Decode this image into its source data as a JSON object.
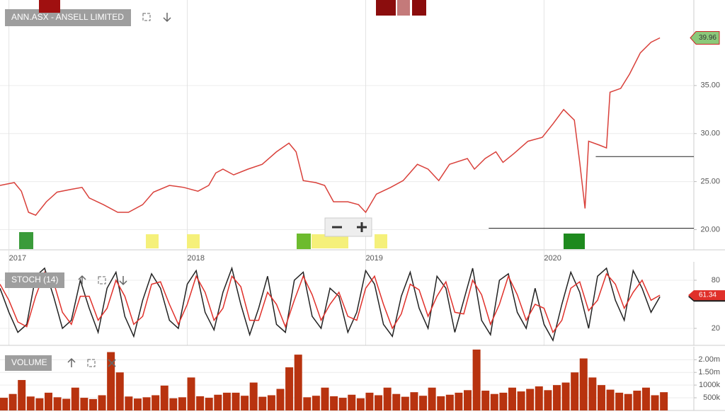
{
  "chart_data": [
    {
      "type": "line",
      "title": "ANN.ASX - ANSELL LIMITED",
      "x": [
        2016.95,
        2017.03,
        2017.07,
        2017.11,
        2017.15,
        2017.21,
        2017.27,
        2017.35,
        2017.41,
        2017.45,
        2017.53,
        2017.61,
        2017.67,
        2017.75,
        2017.81,
        2017.9,
        2017.98,
        2018.06,
        2018.12,
        2018.16,
        2018.2,
        2018.26,
        2018.34,
        2018.42,
        2018.5,
        2018.57,
        2018.61,
        2018.65,
        2018.72,
        2018.77,
        2018.82,
        2018.9,
        2018.96,
        2019.0,
        2019.06,
        2019.14,
        2019.21,
        2019.29,
        2019.35,
        2019.41,
        2019.47,
        2019.57,
        2019.61,
        2019.67,
        2019.73,
        2019.77,
        2019.83,
        2019.91,
        2019.99,
        2020.05,
        2020.11,
        2020.17,
        2020.2,
        2020.23,
        2020.25,
        2020.31,
        2020.35,
        2020.37,
        2020.43,
        2020.48,
        2020.54,
        2020.6,
        2020.65
      ],
      "series": [
        {
          "color": "#d9403a",
          "values": [
            24.6,
            24.9,
            24.0,
            21.8,
            21.5,
            22.9,
            23.9,
            24.2,
            24.4,
            23.3,
            22.6,
            21.8,
            21.8,
            22.6,
            23.9,
            24.6,
            24.4,
            24.0,
            24.6,
            25.9,
            26.3,
            25.7,
            26.3,
            26.8,
            28.1,
            29.0,
            28.1,
            25.1,
            24.9,
            24.6,
            22.9,
            22.9,
            22.6,
            21.8,
            23.7,
            24.4,
            25.1,
            26.8,
            26.3,
            25.1,
            26.8,
            27.4,
            26.3,
            27.4,
            28.1,
            27.0,
            27.9,
            29.2,
            29.6,
            31.0,
            32.5,
            31.4,
            27.0,
            22.2,
            29.2,
            28.8,
            28.5,
            34.3,
            34.7,
            36.2,
            38.4,
            39.5,
            39.96
          ]
        }
      ],
      "last_value": 39.96,
      "levels": [
        {
          "value": 27.6,
          "from": 2020.29
        },
        {
          "value": 20.15,
          "from": 2019.69
        }
      ],
      "xlim": [
        2016.95,
        2020.84
      ],
      "xticks": [
        2017,
        2018,
        2019,
        2020
      ],
      "ylim": [
        17.9,
        43.9
      ],
      "yticks": [
        {
          "value": 20,
          "label": "20.00"
        },
        {
          "value": 25,
          "label": "25.00"
        },
        {
          "value": 30,
          "label": "30.00"
        },
        {
          "value": 35,
          "label": "35.00"
        }
      ],
      "grid": true
    },
    {
      "type": "line",
      "title": "STOCH (14)",
      "x": [
        2016.95,
        2017.0,
        2017.05,
        2017.1,
        2017.15,
        2017.2,
        2017.25,
        2017.3,
        2017.35,
        2017.4,
        2017.45,
        2017.5,
        2017.55,
        2017.6,
        2017.65,
        2017.7,
        2017.75,
        2017.8,
        2017.85,
        2017.9,
        2017.95,
        2018.0,
        2018.05,
        2018.1,
        2018.15,
        2018.2,
        2018.25,
        2018.3,
        2018.35,
        2018.4,
        2018.45,
        2018.5,
        2018.55,
        2018.6,
        2018.65,
        2018.7,
        2018.75,
        2018.8,
        2018.85,
        2018.9,
        2018.95,
        2019.0,
        2019.05,
        2019.1,
        2019.15,
        2019.2,
        2019.25,
        2019.3,
        2019.35,
        2019.4,
        2019.45,
        2019.5,
        2019.55,
        2019.6,
        2019.65,
        2019.7,
        2019.75,
        2019.8,
        2019.85,
        2019.9,
        2019.95,
        2020.0,
        2020.05,
        2020.1,
        2020.15,
        2020.2,
        2020.25,
        2020.3,
        2020.35,
        2020.4,
        2020.45,
        2020.5,
        2020.55,
        2020.6,
        2020.65
      ],
      "series": [
        {
          "color": "#222222",
          "values": [
            70,
            40,
            15,
            25,
            85,
            95,
            60,
            20,
            30,
            80,
            45,
            15,
            70,
            90,
            35,
            10,
            55,
            88,
            70,
            30,
            20,
            75,
            92,
            40,
            18,
            65,
            95,
            50,
            12,
            45,
            85,
            25,
            15,
            80,
            90,
            35,
            20,
            70,
            60,
            15,
            40,
            92,
            75,
            25,
            10,
            60,
            90,
            45,
            20,
            85,
            70,
            15,
            55,
            95,
            30,
            12,
            80,
            88,
            40,
            20,
            70,
            25,
            5,
            50,
            90,
            65,
            20,
            85,
            95,
            55,
            30,
            92,
            70,
            40,
            59.42
          ]
        },
        {
          "color": "#e0302a",
          "values": [
            75,
            55,
            28,
            22,
            60,
            90,
            78,
            40,
            25,
            60,
            60,
            30,
            45,
            80,
            60,
            25,
            35,
            75,
            78,
            50,
            25,
            50,
            85,
            65,
            30,
            45,
            85,
            72,
            30,
            30,
            65,
            50,
            22,
            55,
            85,
            62,
            30,
            50,
            65,
            35,
            30,
            70,
            85,
            50,
            20,
            38,
            75,
            68,
            35,
            60,
            78,
            40,
            38,
            80,
            62,
            25,
            50,
            85,
            62,
            30,
            50,
            45,
            15,
            30,
            70,
            78,
            42,
            55,
            88,
            75,
            45,
            65,
            80,
            55,
            61.34
          ]
        }
      ],
      "xlim": [
        2016.95,
        2020.84
      ],
      "ylim": [
        -1.2,
        102.9
      ],
      "yticks": [
        20,
        80
      ],
      "grid": true
    },
    {
      "type": "bar",
      "title": "VOLUME",
      "x": [
        2016.95,
        2017.0,
        2017.05,
        2017.1,
        2017.15,
        2017.2,
        2017.25,
        2017.3,
        2017.35,
        2017.4,
        2017.45,
        2017.5,
        2017.55,
        2017.6,
        2017.65,
        2017.7,
        2017.75,
        2017.8,
        2017.85,
        2017.9,
        2017.95,
        2018.0,
        2018.05,
        2018.1,
        2018.15,
        2018.2,
        2018.25,
        2018.3,
        2018.35,
        2018.4,
        2018.45,
        2018.5,
        2018.55,
        2018.6,
        2018.65,
        2018.7,
        2018.75,
        2018.8,
        2018.85,
        2018.9,
        2018.95,
        2019.0,
        2019.05,
        2019.1,
        2019.15,
        2019.2,
        2019.25,
        2019.3,
        2019.35,
        2019.4,
        2019.45,
        2019.5,
        2019.55,
        2019.6,
        2019.65,
        2019.7,
        2019.75,
        2019.8,
        2019.85,
        2019.9,
        2019.95,
        2020.0,
        2020.05,
        2020.1,
        2020.15,
        2020.2,
        2020.25,
        2020.3,
        2020.35,
        2020.4,
        2020.45,
        2020.5,
        2020.55,
        2020.6,
        2020.65
      ],
      "values": [
        500000,
        650000,
        1200000,
        550000,
        480000,
        700000,
        520000,
        460000,
        900000,
        500000,
        450000,
        600000,
        2300000,
        1500000,
        550000,
        470000,
        520000,
        600000,
        980000,
        480000,
        520000,
        1300000,
        560000,
        500000,
        620000,
        700000,
        700000,
        580000,
        1100000,
        540000,
        600000,
        850000,
        1700000,
        2200000,
        520000,
        580000,
        900000,
        560000,
        500000,
        620000,
        480000,
        700000,
        600000,
        900000,
        650000,
        540000,
        720000,
        580000,
        900000,
        560000,
        620000,
        700000,
        800000,
        2400000,
        780000,
        650000,
        700000,
        900000,
        750000,
        850000,
        950000,
        800000,
        1000000,
        1100000,
        1500000,
        2050000,
        1300000,
        1000000,
        820000,
        700000,
        650000,
        780000,
        900000,
        600000,
        720000
      ],
      "color": "#b8330f",
      "xlim": [
        2016.95,
        2020.84
      ],
      "ylim": [
        0,
        2510000
      ],
      "yticks": [
        {
          "value": 500000,
          "label": "500k"
        },
        {
          "value": 1000000,
          "label": "1000k"
        },
        {
          "value": 1500000,
          "label": "1.50m"
        },
        {
          "value": 2000000,
          "label": "2.00m"
        }
      ],
      "grid": true
    }
  ]
}
